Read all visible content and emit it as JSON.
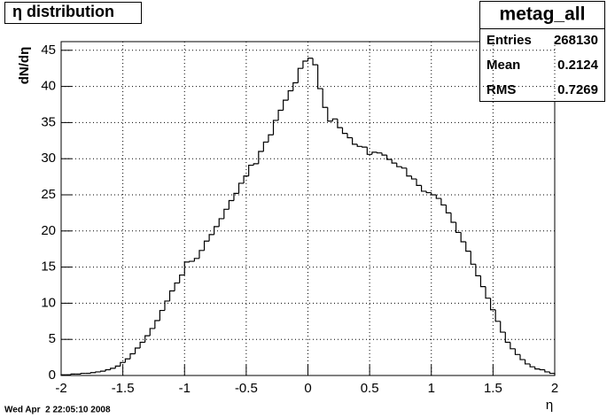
{
  "chart_data": {
    "type": "histogram",
    "title": "η distribution",
    "x_label": "η",
    "y_label": "dN/dη",
    "timestamp": "Wed Apr  2 22:05:10 2008",
    "stats": {
      "name": "metag_all",
      "rows": [
        [
          "Entries",
          "268130"
        ],
        [
          "Mean",
          "0.2124"
        ],
        [
          "RMS",
          "0.7269"
        ]
      ]
    },
    "color": "#000000",
    "grid": true,
    "bins": [
      -2,
      -1.96,
      -1.92,
      -1.88,
      -1.84,
      -1.8,
      -1.76,
      -1.72,
      -1.68,
      -1.64,
      -1.6,
      -1.56,
      -1.52,
      -1.48,
      -1.44,
      -1.4,
      -1.36,
      -1.32,
      -1.28,
      -1.24,
      -1.2,
      -1.16,
      -1.12,
      -1.08,
      -1.04,
      -1,
      -0.96,
      -0.92,
      -0.88,
      -0.84,
      -0.8,
      -0.76,
      -0.72,
      -0.68,
      -0.64,
      -0.6,
      -0.56,
      -0.52,
      -0.48,
      -0.44,
      -0.4,
      -0.36,
      -0.32,
      -0.28,
      -0.24,
      -0.2,
      -0.16,
      -0.12,
      -0.08,
      -0.04,
      0,
      0.04,
      0.08,
      0.12,
      0.16,
      0.2,
      0.24,
      0.28,
      0.32,
      0.36,
      0.4,
      0.44,
      0.48,
      0.52,
      0.56,
      0.6,
      0.64,
      0.68,
      0.72,
      0.76,
      0.8,
      0.84,
      0.88,
      0.92,
      0.96,
      1,
      1.04,
      1.08,
      1.12,
      1.16,
      1.2,
      1.24,
      1.28,
      1.32,
      1.36,
      1.4,
      1.44,
      1.48,
      1.52,
      1.56,
      1.6,
      1.64,
      1.68,
      1.72,
      1.76,
      1.8,
      1.84,
      1.88,
      1.92,
      1.96,
      2
    ],
    "values": [
      0.1,
      0.1,
      0.2,
      0.2,
      0.3,
      0.3,
      0.4,
      0.5,
      0.6,
      0.8,
      1.0,
      1.3,
      1.8,
      2.3,
      3.0,
      3.8,
      4.6,
      5.5,
      6.5,
      7.6,
      9.0,
      10.3,
      11.7,
      12.8,
      13.9,
      15.7,
      15.8,
      16.2,
      17.3,
      18.6,
      19.5,
      20.6,
      21.7,
      23.0,
      24.2,
      25.2,
      26.6,
      27.6,
      29.1,
      29.3,
      31.0,
      32.3,
      33.3,
      35.3,
      36.7,
      38.1,
      39.4,
      40.5,
      42.5,
      43.5,
      43.9,
      43.0,
      39.7,
      37.1,
      35.2,
      35.5,
      34.3,
      33.5,
      32.9,
      32.0,
      31.7,
      31.6,
      30.6,
      30.9,
      30.8,
      30.5,
      29.9,
      29.4,
      28.9,
      28.7,
      27.6,
      27.2,
      26.3,
      25.5,
      25.3,
      25.0,
      24.5,
      23.6,
      22.5,
      21.2,
      19.8,
      18.5,
      17.2,
      15.4,
      13.8,
      12.3,
      10.7,
      9.1,
      7.5,
      6.0,
      4.6,
      3.7,
      2.9,
      2.2,
      1.6,
      1.2,
      0.9,
      0.8,
      0.5,
      0.3
    ],
    "xlim": [
      -2,
      2
    ],
    "ylim": [
      0,
      46.2
    ],
    "xticks": [
      -2,
      -1.5,
      -1,
      -0.5,
      0,
      0.5,
      1,
      1.5,
      2
    ],
    "yticks": [
      0,
      5,
      10,
      15,
      20,
      25,
      30,
      35,
      40,
      45
    ]
  }
}
